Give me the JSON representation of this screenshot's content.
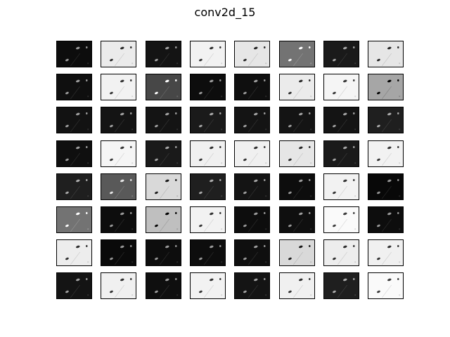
{
  "figure": {
    "title": "conv2d_15"
  },
  "feature_maps": {
    "rows": 8,
    "cols": 8,
    "palette": "grayscale",
    "background_levels": [
      [
        0.05,
        0.92,
        0.08,
        0.95,
        0.9,
        0.45,
        0.1,
        0.9
      ],
      [
        0.06,
        0.95,
        0.28,
        0.05,
        0.06,
        0.92,
        0.96,
        0.65
      ],
      [
        0.07,
        0.08,
        0.08,
        0.1,
        0.08,
        0.08,
        0.08,
        0.12
      ],
      [
        0.06,
        0.96,
        0.1,
        0.94,
        0.94,
        0.9,
        0.1,
        0.95
      ],
      [
        0.12,
        0.35,
        0.85,
        0.12,
        0.08,
        0.05,
        0.95,
        0.03
      ],
      [
        0.45,
        0.05,
        0.75,
        0.95,
        0.05,
        0.06,
        0.98,
        0.05
      ],
      [
        0.93,
        0.04,
        0.05,
        0.05,
        0.06,
        0.85,
        0.93,
        0.94
      ],
      [
        0.08,
        0.94,
        0.06,
        0.95,
        0.08,
        0.94,
        0.12,
        0.98
      ]
    ],
    "highlight_maps": [
      [
        0,
        0,
        0,
        0,
        0,
        1,
        0,
        0
      ],
      [
        0,
        0,
        1,
        0,
        0,
        0,
        0,
        1
      ],
      [
        0,
        0,
        0,
        0,
        0,
        0,
        0,
        0
      ],
      [
        0,
        0,
        0,
        0,
        0,
        0,
        0,
        0
      ],
      [
        0,
        0,
        0,
        0,
        0,
        0,
        0,
        0
      ],
      [
        0,
        0,
        0,
        0,
        0,
        0,
        0,
        0
      ],
      [
        0,
        0,
        0,
        0,
        0,
        0,
        0,
        0
      ],
      [
        0,
        0,
        0,
        0,
        0,
        0,
        0,
        0
      ]
    ]
  }
}
